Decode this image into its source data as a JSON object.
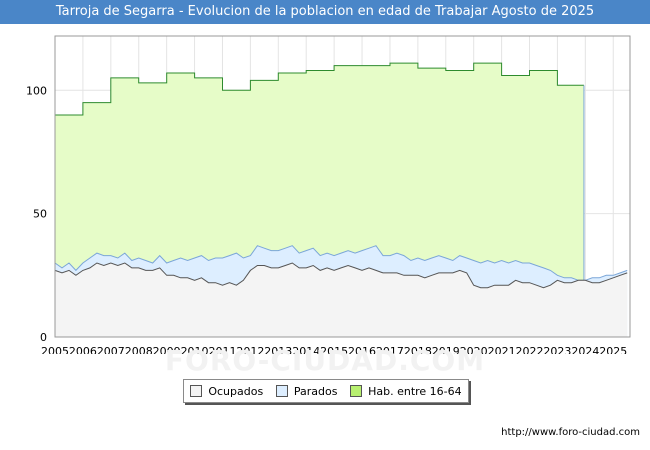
{
  "page": {
    "title": "Tarroja de Segarra - Evolucion de la poblacion en edad de Trabajar Agosto de 2025",
    "footer": "http://www.foro-ciudad.com",
    "watermark": "FORO-CIUDAD.COM"
  },
  "colors": {
    "title_bg": "#4a86c8",
    "hab": "#e6fcc8",
    "hab_line": "#2e8b2e",
    "parados": "#ddeeff",
    "parados_line": "#7ba6d8",
    "ocupados": "#f4f4f4",
    "ocupados_line": "#555555"
  },
  "chart_data": {
    "type": "area",
    "xlim": [
      2005,
      2025.6
    ],
    "ylim": [
      0,
      122
    ],
    "yticks": [
      0,
      50,
      100
    ],
    "xticks": [
      "2005",
      "2006",
      "2007",
      "2008",
      "2009",
      "2010",
      "2011",
      "2012",
      "2013",
      "2014",
      "2015",
      "2016",
      "2017",
      "2018",
      "2019",
      "2020",
      "2021",
      "2022",
      "2023",
      "2024",
      "2025"
    ],
    "grid": true,
    "legend_position": "bottom",
    "series": [
      {
        "name": "Hab. entre 16-64",
        "x": [
          2005,
          2006,
          2006,
          2007,
          2007,
          2008,
          2008,
          2009,
          2009,
          2010,
          2010,
          2011,
          2011,
          2012,
          2012,
          2013,
          2013,
          2014,
          2014,
          2015,
          2015,
          2016,
          2016,
          2017,
          2017,
          2018,
          2018,
          2019,
          2019,
          2020,
          2020,
          2021,
          2021,
          2022,
          2022,
          2023,
          2023,
          2023.95
        ],
        "values": [
          90,
          90,
          95,
          95,
          105,
          105,
          103,
          103,
          107,
          107,
          105,
          105,
          100,
          100,
          104,
          104,
          107,
          107,
          108,
          108,
          110,
          110,
          110,
          110,
          111,
          111,
          109,
          109,
          108,
          108,
          111,
          111,
          106,
          106,
          108,
          108,
          102,
          102
        ]
      },
      {
        "name": "Parados",
        "x": [
          2005,
          2005.25,
          2005.5,
          2005.75,
          2006,
          2006.25,
          2006.5,
          2006.75,
          2007,
          2007.25,
          2007.5,
          2007.75,
          2008,
          2008.25,
          2008.5,
          2008.75,
          2009,
          2009.25,
          2009.5,
          2009.75,
          2010,
          2010.25,
          2010.5,
          2010.75,
          2011,
          2011.25,
          2011.5,
          2011.75,
          2012,
          2012.25,
          2012.5,
          2012.75,
          2013,
          2013.25,
          2013.5,
          2013.75,
          2014,
          2014.25,
          2014.5,
          2014.75,
          2015,
          2015.25,
          2015.5,
          2015.75,
          2016,
          2016.25,
          2016.5,
          2016.75,
          2017,
          2017.25,
          2017.5,
          2017.75,
          2018,
          2018.25,
          2018.5,
          2018.75,
          2019,
          2019.25,
          2019.5,
          2019.75,
          2020,
          2020.25,
          2020.5,
          2020.75,
          2021,
          2021.25,
          2021.5,
          2021.75,
          2022,
          2022.25,
          2022.5,
          2022.75,
          2023,
          2023.25,
          2023.5,
          2023.75,
          2024,
          2024.25,
          2024.5,
          2024.75,
          2025,
          2025.25,
          2025.5
        ],
        "values": [
          30,
          28,
          30,
          27,
          30,
          32,
          34,
          33,
          33,
          32,
          34,
          31,
          32,
          31,
          30,
          33,
          30,
          31,
          32,
          31,
          32,
          33,
          31,
          32,
          32,
          33,
          34,
          32,
          33,
          37,
          36,
          35,
          35,
          36,
          37,
          34,
          35,
          36,
          33,
          34,
          33,
          34,
          35,
          34,
          35,
          36,
          37,
          33,
          33,
          34,
          33,
          31,
          32,
          31,
          32,
          33,
          32,
          31,
          33,
          32,
          31,
          30,
          31,
          30,
          31,
          30,
          31,
          30,
          30,
          29,
          28,
          27,
          25,
          24,
          24,
          23,
          23,
          24,
          24,
          25,
          25,
          26,
          27
        ]
      },
      {
        "name": "Ocupados",
        "x": [
          2005,
          2005.25,
          2005.5,
          2005.75,
          2006,
          2006.25,
          2006.5,
          2006.75,
          2007,
          2007.25,
          2007.5,
          2007.75,
          2008,
          2008.25,
          2008.5,
          2008.75,
          2009,
          2009.25,
          2009.5,
          2009.75,
          2010,
          2010.25,
          2010.5,
          2010.75,
          2011,
          2011.25,
          2011.5,
          2011.75,
          2012,
          2012.25,
          2012.5,
          2012.75,
          2013,
          2013.25,
          2013.5,
          2013.75,
          2014,
          2014.25,
          2014.5,
          2014.75,
          2015,
          2015.25,
          2015.5,
          2015.75,
          2016,
          2016.25,
          2016.5,
          2016.75,
          2017,
          2017.25,
          2017.5,
          2017.75,
          2018,
          2018.25,
          2018.5,
          2018.75,
          2019,
          2019.25,
          2019.5,
          2019.75,
          2020,
          2020.25,
          2020.5,
          2020.75,
          2021,
          2021.25,
          2021.5,
          2021.75,
          2022,
          2022.25,
          2022.5,
          2022.75,
          2023,
          2023.25,
          2023.5,
          2023.75,
          2024,
          2024.25,
          2024.5,
          2024.75,
          2025,
          2025.25,
          2025.5
        ],
        "values": [
          27,
          26,
          27,
          25,
          27,
          28,
          30,
          29,
          30,
          29,
          30,
          28,
          28,
          27,
          27,
          28,
          25,
          25,
          24,
          24,
          23,
          24,
          22,
          22,
          21,
          22,
          21,
          23,
          27,
          29,
          29,
          28,
          28,
          29,
          30,
          28,
          28,
          29,
          27,
          28,
          27,
          28,
          29,
          28,
          27,
          28,
          27,
          26,
          26,
          26,
          25,
          25,
          25,
          24,
          25,
          26,
          26,
          26,
          27,
          26,
          21,
          20,
          20,
          21,
          21,
          21,
          23,
          22,
          22,
          21,
          20,
          21,
          23,
          22,
          22,
          23,
          23,
          22,
          22,
          23,
          24,
          25,
          26
        ]
      }
    ]
  },
  "legend": [
    {
      "label": "Ocupados",
      "color": "#f4f4f4"
    },
    {
      "label": "Parados",
      "color": "#ddeeff"
    },
    {
      "label": "Hab. entre 16-64",
      "color": "#b8f070"
    }
  ]
}
